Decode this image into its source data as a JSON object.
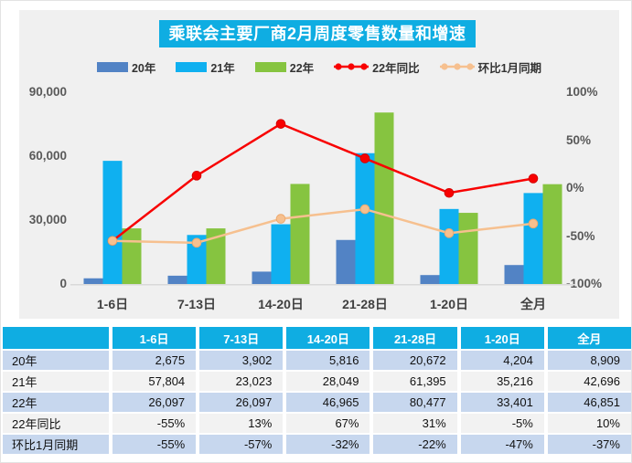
{
  "title": "乘联会主要厂商2月周度零售数量和增速",
  "legend": [
    {
      "label": "20年",
      "marker": "bar",
      "color": "#5283c5"
    },
    {
      "label": "21年",
      "marker": "bar",
      "color": "#0fb0f0"
    },
    {
      "label": "22年",
      "marker": "bar",
      "color": "#86c440"
    },
    {
      "label": "22年同比",
      "marker": "line",
      "color": "#f80000"
    },
    {
      "label": "环比1月同期",
      "marker": "line",
      "color": "#f6c08f"
    }
  ],
  "chart_data": {
    "type": "bar+line",
    "title": "乘联会主要厂商2月周度零售数量和增速",
    "categories": [
      "1-6日",
      "7-13日",
      "14-20日",
      "21-28日",
      "1-20日",
      "全月"
    ],
    "bar_series": [
      {
        "name": "20年",
        "color": "#5283c5",
        "values": [
          2675,
          3902,
          5816,
          20672,
          4204,
          8909
        ]
      },
      {
        "name": "21年",
        "color": "#0fb0f0",
        "values": [
          57804,
          23023,
          28049,
          61395,
          35216,
          42696
        ]
      },
      {
        "name": "22年",
        "color": "#86c440",
        "values": [
          26097,
          26097,
          46965,
          80477,
          33401,
          46851
        ]
      }
    ],
    "line_series": [
      {
        "name": "22年同比",
        "color": "#f80000",
        "dot_stroke": "#d40000",
        "values": [
          -55,
          13,
          67,
          31,
          -5,
          10
        ]
      },
      {
        "name": "环比1月同期",
        "color": "#f6c08f",
        "dot_stroke": "#eda96e",
        "values": [
          -55,
          -57,
          -32,
          -22,
          -47,
          -37
        ]
      }
    ],
    "left_axis": {
      "min": 0,
      "max": 90000,
      "ticks": [
        "90,000",
        "60,000",
        "30,000",
        "0"
      ]
    },
    "right_axis": {
      "min": -100,
      "max": 100,
      "ticks": [
        "100%",
        "50%",
        "0%",
        "-50%",
        "-100%"
      ]
    },
    "grid": false,
    "legend_position": "top"
  },
  "table": {
    "headers": [
      "",
      "1-6日",
      "7-13日",
      "14-20日",
      "21-28日",
      "1-20日",
      "全月"
    ],
    "rows": [
      {
        "label": "20年",
        "cells": [
          "2,675",
          "3,902",
          "5,816",
          "20,672",
          "4,204",
          "8,909"
        ]
      },
      {
        "label": "21年",
        "cells": [
          "57,804",
          "23,023",
          "28,049",
          "61,395",
          "35,216",
          "42,696"
        ]
      },
      {
        "label": "22年",
        "cells": [
          "26,097",
          "26,097",
          "46,965",
          "80,477",
          "33,401",
          "46,851"
        ]
      },
      {
        "label": "22年同比",
        "cells": [
          "-55%",
          "13%",
          "67%",
          "31%",
          "-5%",
          "10%"
        ]
      },
      {
        "label": "环比1月同期",
        "cells": [
          "-55%",
          "-57%",
          "-32%",
          "-22%",
          "-47%",
          "-37%"
        ]
      }
    ]
  },
  "colors": {
    "accent_cyan": "#0fade2",
    "panel_bg": "#f0f0f0",
    "bar_blue": "#5283c5",
    "bar_cyan": "#0fb0f0",
    "bar_green": "#86c440",
    "line_red": "#f80000",
    "line_peach": "#f6c08f",
    "table_row_alt": "#c7d7ee",
    "axis_text": "#595959"
  }
}
